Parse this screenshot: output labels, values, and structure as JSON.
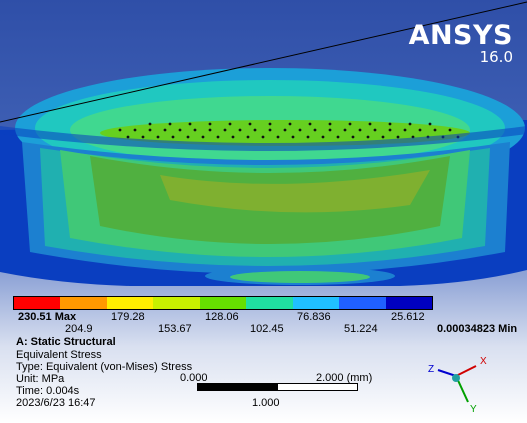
{
  "brand": {
    "name": "ANSYS",
    "version": "16.0"
  },
  "legend": {
    "max_label": "230.51 Max",
    "min_label": "0.00034823 Min",
    "top_ticks": [
      "179.28",
      "128.06",
      "76.836",
      "25.612"
    ],
    "bottom_ticks": [
      "204.9",
      "153.67",
      "102.45",
      "51.224"
    ],
    "colors": [
      "#ff0000",
      "#ff9900",
      "#ffee00",
      "#c8f000",
      "#66e000",
      "#20e0a0",
      "#20c0ff",
      "#2060ff",
      "#0000c0"
    ]
  },
  "info": {
    "analysis": "A: Static Structural",
    "result": "Equivalent Stress",
    "type": "Type: Equivalent (von-Mises) Stress",
    "unit": "Unit: MPa",
    "time": "Time: 0.004s",
    "timestamp": "2023/6/23 16:47"
  },
  "scale_bar": {
    "left": "0.000",
    "right": "2.000 (mm)",
    "mid": "1.000"
  },
  "triad": {
    "x": "X",
    "y": "Y",
    "z": "Z"
  }
}
